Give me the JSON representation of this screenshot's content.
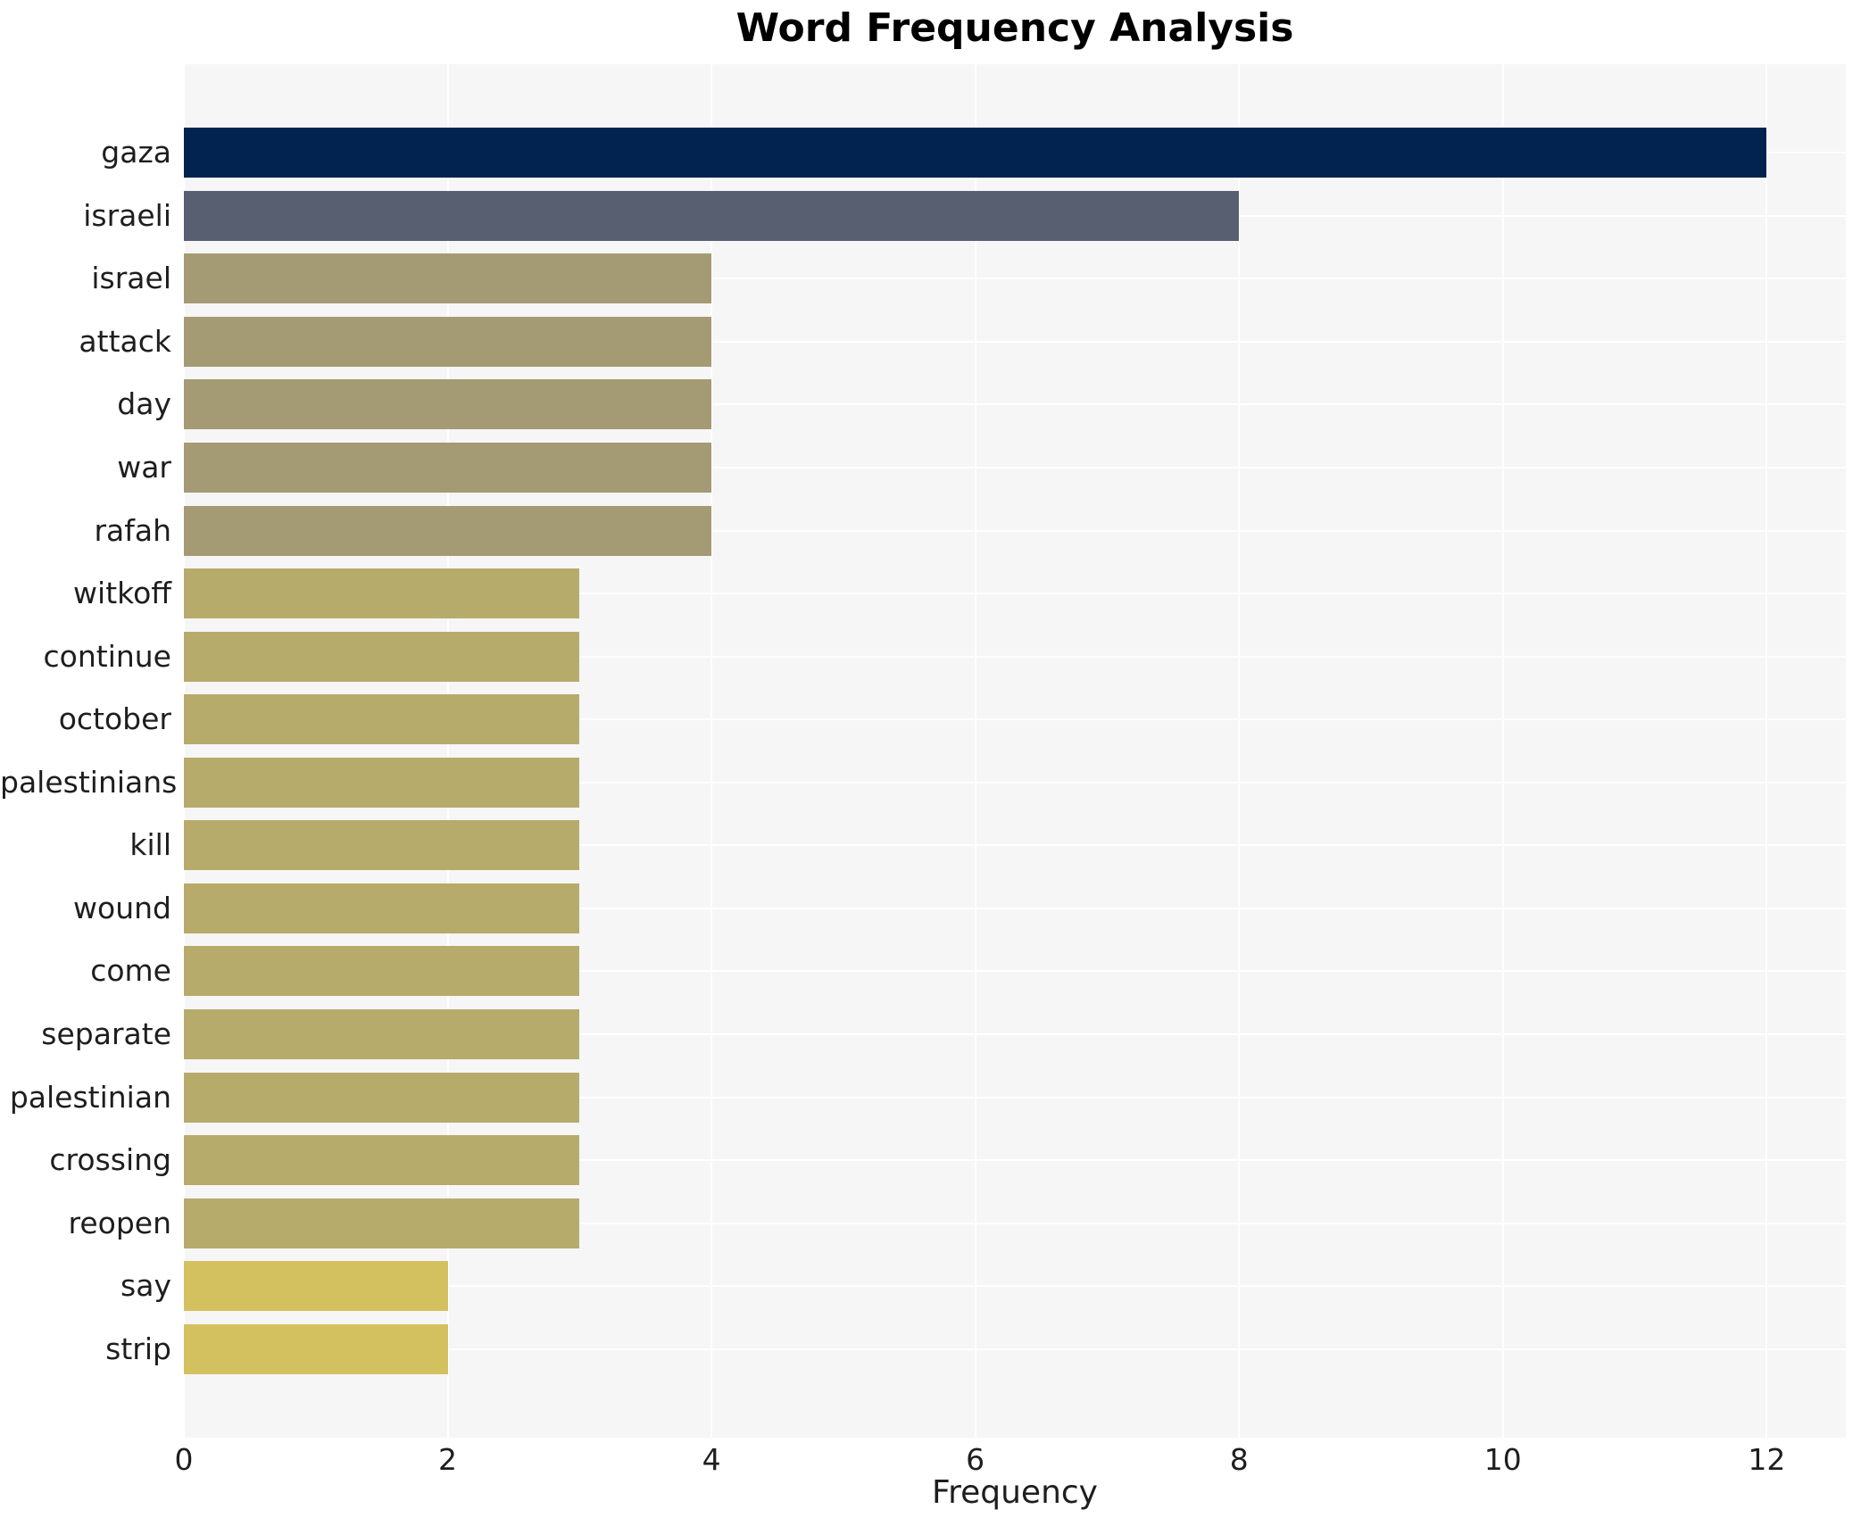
{
  "chart_data": {
    "type": "bar",
    "orientation": "horizontal",
    "title": "Word Frequency Analysis",
    "xlabel": "Frequency",
    "ylabel": "",
    "xlim": [
      0,
      12.6
    ],
    "x_ticks": [
      0,
      2,
      4,
      6,
      8,
      10,
      12
    ],
    "grid": true,
    "legend_position": "none",
    "plot_background": "#f6f6f7",
    "grid_color": "#ffffff",
    "text_color": "#1e1e1e",
    "title_color": "#000000",
    "categories": [
      "gaza",
      "israeli",
      "israel",
      "attack",
      "day",
      "war",
      "rafah",
      "witkoff",
      "continue",
      "october",
      "palestinians",
      "kill",
      "wound",
      "come",
      "separate",
      "palestinian",
      "crossing",
      "reopen",
      "say",
      "strip"
    ],
    "values": [
      12,
      8,
      4,
      4,
      4,
      4,
      4,
      3,
      3,
      3,
      3,
      3,
      3,
      3,
      3,
      3,
      3,
      3,
      2,
      2
    ],
    "bar_colors": [
      "#022350",
      "#585f70",
      "#a49b74",
      "#a49b74",
      "#a49b74",
      "#a49b74",
      "#a49b74",
      "#b7ab6c",
      "#b7ab6c",
      "#b7ab6c",
      "#b7ab6c",
      "#b7ab6c",
      "#b7ab6c",
      "#b7ab6c",
      "#b7ab6c",
      "#b7ab6c",
      "#b7ab6c",
      "#b7ab6c",
      "#d3c160",
      "#d3c160"
    ]
  }
}
